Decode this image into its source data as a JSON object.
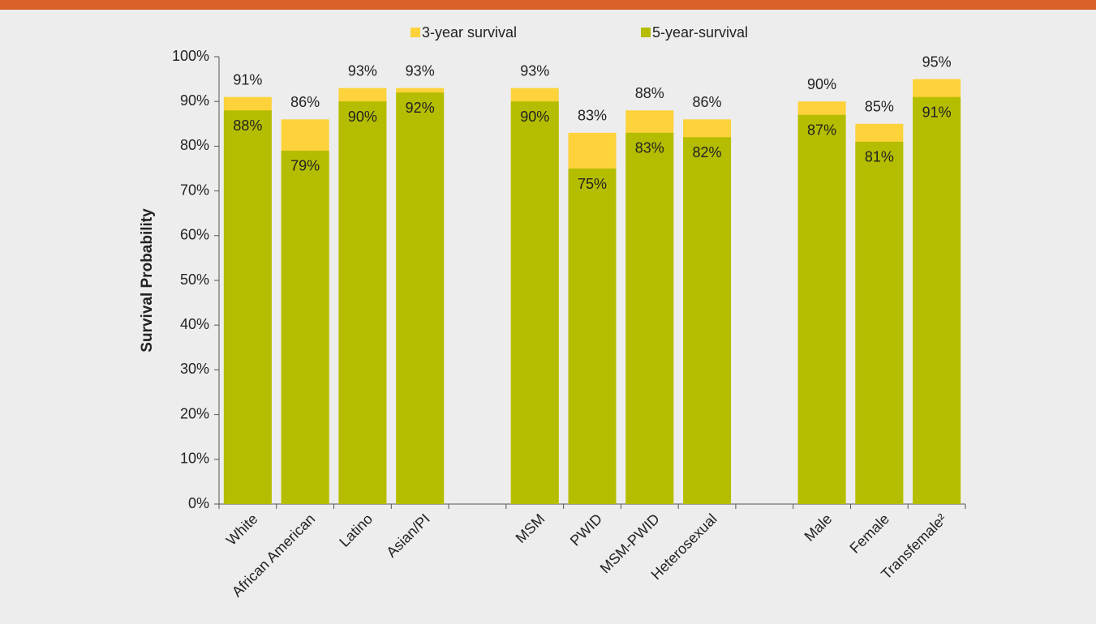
{
  "chart_data": {
    "type": "bar",
    "overlap": true,
    "y_label": "Survival Probability",
    "categories": [
      "White",
      "African American",
      "Latino",
      "Asian/PI",
      null,
      "MSM",
      "PWID",
      "MSM-PWID",
      "Heterosexual",
      null,
      "Male",
      "Female",
      "Transfemale²"
    ],
    "series": [
      {
        "name": "3-year survival",
        "color": "#fdd23a",
        "values": [
          91,
          86,
          93,
          93,
          null,
          93,
          83,
          88,
          86,
          null,
          90,
          85,
          95
        ],
        "value_labels": [
          "91%",
          "86%",
          "93%",
          "93%",
          null,
          "93%",
          "83%",
          "88%",
          "86%",
          null,
          "90%",
          "85%",
          "95%"
        ]
      },
      {
        "name": "5-year-survival",
        "color": "#b5bd00",
        "values": [
          88,
          79,
          90,
          92,
          null,
          90,
          75,
          83,
          82,
          null,
          87,
          81,
          91
        ],
        "value_labels": [
          "88%",
          "79%",
          "90%",
          "92%",
          null,
          "90%",
          "75%",
          "83%",
          "82%",
          null,
          "87%",
          "81%",
          "91%"
        ]
      }
    ],
    "ylim": [
      0,
      100
    ],
    "yticks": [
      {
        "value": 0,
        "label": "0%"
      },
      {
        "value": 10,
        "label": "10%"
      },
      {
        "value": 20,
        "label": "20%"
      },
      {
        "value": 30,
        "label": "30%"
      },
      {
        "value": 40,
        "label": "40%"
      },
      {
        "value": 50,
        "label": "50%"
      },
      {
        "value": 60,
        "label": "60%"
      },
      {
        "value": 70,
        "label": "70%"
      },
      {
        "value": 80,
        "label": "80%"
      },
      {
        "value": 90,
        "label": "90%"
      },
      {
        "value": 100,
        "label": "100%"
      }
    ],
    "legend": "top"
  }
}
